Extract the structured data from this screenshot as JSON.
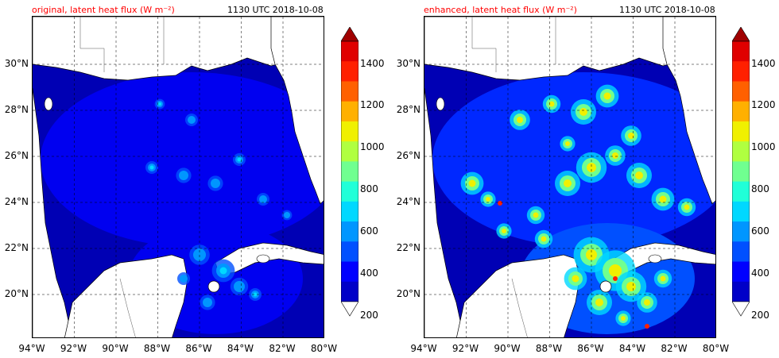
{
  "panels": [
    {
      "id": "original",
      "title": "original, latent heat flux (W m⁻²)",
      "timestamp": "1130 UTC 2018-10-08",
      "intensity": "low"
    },
    {
      "id": "enhanced",
      "title": "enhanced, latent heat flux (W m⁻²)",
      "timestamp": "1130 UTC 2018-10-08",
      "intensity": "high"
    }
  ],
  "lat_labels": [
    "30°N",
    "28°N",
    "26°N",
    "24°N",
    "22°N",
    "20°N"
  ],
  "lon_labels": [
    "94°W",
    "92°W",
    "90°W",
    "88°W",
    "86°W",
    "84°W",
    "82°W",
    "80°W"
  ],
  "colorbar": {
    "labels": [
      "1400",
      "1200",
      "1000",
      "800",
      "600",
      "400",
      "200"
    ],
    "colors": [
      "#000090",
      "#0000c8",
      "#0000ff",
      "#0050ff",
      "#0096ff",
      "#00d8ff",
      "#20ffd8",
      "#70ff90",
      "#b0ff40",
      "#f0f000",
      "#ffb000",
      "#ff6000",
      "#ff2000",
      "#e00000",
      "#a00000"
    ]
  },
  "colors": {
    "land": "#ffffff",
    "ocean_base": "#0000b4",
    "title": "#ff0000"
  }
}
